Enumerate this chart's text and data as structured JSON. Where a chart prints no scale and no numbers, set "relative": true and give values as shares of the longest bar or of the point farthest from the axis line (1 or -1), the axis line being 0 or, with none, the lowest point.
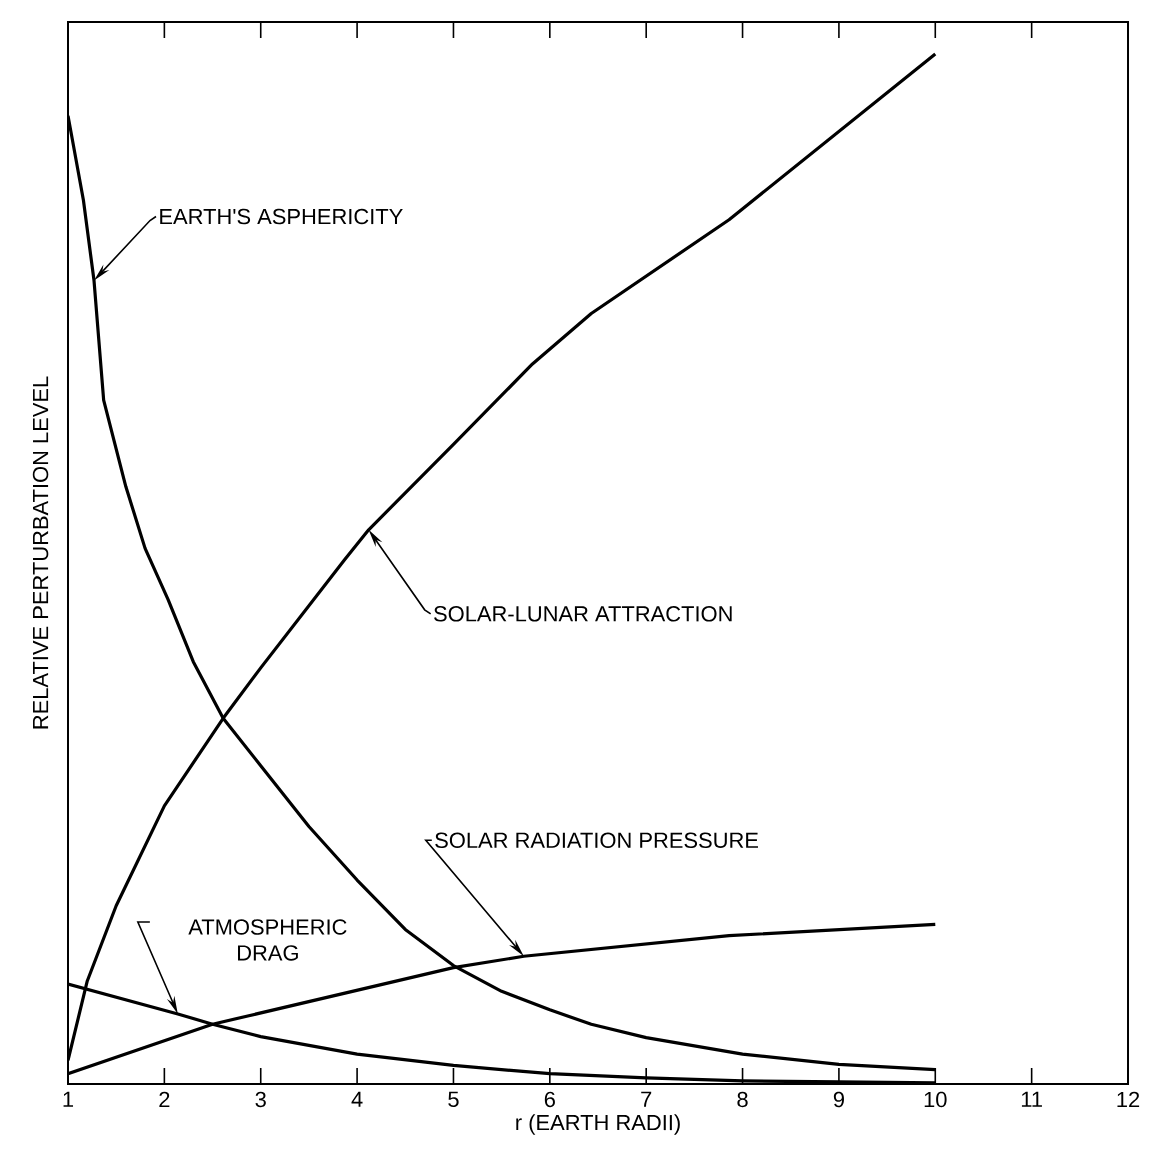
{
  "chart_data": {
    "type": "line",
    "xlabel": "r (EARTH RADII)",
    "ylabel": "RELATIVE PERTURBATION LEVEL",
    "relative": true,
    "xlim": [
      1,
      12
    ],
    "xticks": [
      1,
      2,
      3,
      4,
      5,
      6,
      7,
      8,
      9,
      10,
      11,
      12
    ],
    "grid": false,
    "marker": "none",
    "line_style": "solid",
    "series": [
      {
        "color": "#000000",
        "x": [
          1,
          1.16,
          1.27,
          1.37,
          1.6,
          1.8,
          2.04,
          2.3,
          2.61,
          3,
          3.5,
          4,
          4.5,
          5,
          5.5,
          6,
          6.43,
          7,
          8,
          9,
          10
        ],
        "values": [
          0.94,
          0.858,
          0.78,
          0.664,
          0.58,
          0.52,
          0.47,
          0.41,
          0.355,
          0.309,
          0.25,
          0.198,
          0.15,
          0.115,
          0.09,
          0.072,
          0.058,
          0.045,
          0.029,
          0.019,
          0.014
        ]
      },
      {
        "color": "#000000",
        "x": [
          1,
          1.2,
          1.5,
          2,
          2.61,
          3,
          3.87,
          4.12,
          5,
          5.82,
          6.43,
          7.86,
          10
        ],
        "values": [
          0.023,
          0.1,
          0.173,
          0.27,
          0.355,
          0.404,
          0.509,
          0.538,
          0.621,
          0.699,
          0.748,
          0.839,
          1
        ]
      },
      {
        "color": "#000000",
        "x": [
          1,
          2.5,
          5,
          5.73,
          7.86,
          10
        ],
        "values": [
          0.01,
          0.058,
          0.113,
          0.124,
          0.144,
          0.155
        ]
      },
      {
        "color": "#000000",
        "x": [
          1,
          2.14,
          2.5,
          3,
          4,
          5,
          6,
          7,
          8,
          9,
          10
        ],
        "values": [
          0.097,
          0.068,
          0.058,
          0.046,
          0.029,
          0.018,
          0.01,
          0.006,
          0.003,
          0.002,
          0.001
        ]
      }
    ],
    "annotations": [
      {
        "text": "EARTH'S ASPHERICITY",
        "x": 1.27,
        "y": 0.78
      },
      {
        "text": "SOLAR-LUNAR ATTRACTION",
        "x": 4.12,
        "y": 0.538
      },
      {
        "text": "SOLAR RADIATION PRESSURE",
        "x": 5.73,
        "y": 0.124
      },
      {
        "text": "ATMOSPHERIC DRAG",
        "x": 2.14,
        "y": 0.068
      }
    ]
  }
}
